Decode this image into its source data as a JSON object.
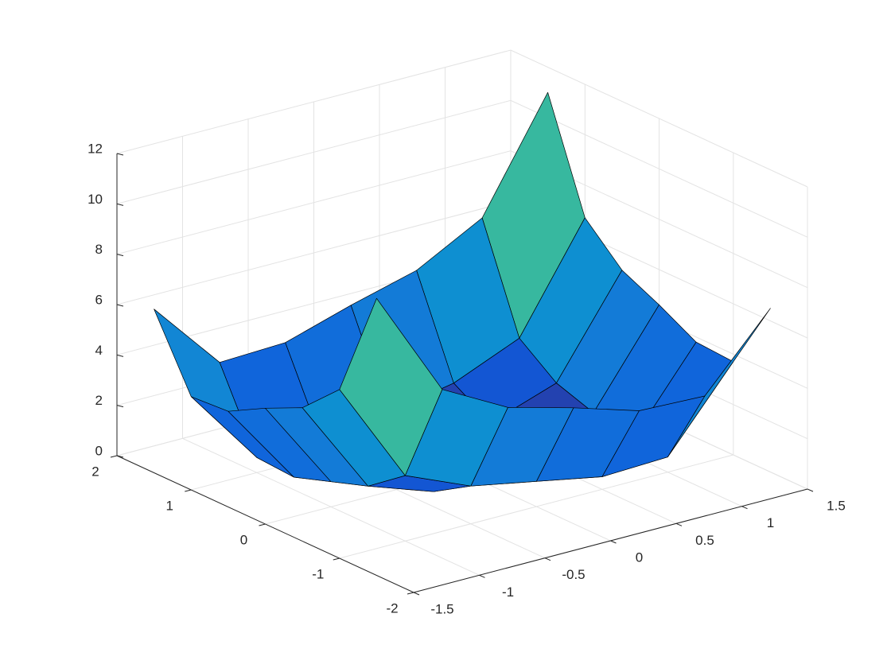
{
  "chart_data": {
    "type": "surface",
    "colormap": "parula",
    "grid": true,
    "x": [
      -1.5,
      -1,
      -0.5,
      0,
      0.5,
      1,
      1.5
    ],
    "y": [
      -1.5,
      -1,
      -0.5,
      0,
      0.5,
      1,
      1.5
    ],
    "z": [
      [
        11.0,
        6.7,
        5.3,
        4.6,
        3.8,
        3.7,
        6.5
      ],
      [
        6.7,
        2.6,
        1.5,
        1.0,
        0.5,
        0.6,
        3.7
      ],
      [
        5.3,
        1.5,
        0.6,
        0.4,
        0.1,
        0.5,
        3.8
      ],
      [
        4.6,
        1.0,
        0.4,
        0.4,
        0.4,
        1.0,
        4.6
      ],
      [
        3.8,
        0.5,
        0.1,
        0.4,
        0.6,
        1.5,
        5.3
      ],
      [
        3.7,
        0.6,
        0.5,
        1.0,
        1.5,
        2.6,
        6.7
      ],
      [
        6.5,
        3.7,
        3.8,
        4.6,
        5.3,
        6.7,
        11.0
      ]
    ],
    "xlim": [
      -1.5,
      1.5
    ],
    "xticks": [
      -1.5,
      -1,
      -0.5,
      0,
      0.5,
      1,
      1.5
    ],
    "ylim": [
      -2,
      2
    ],
    "yticks": [
      -2,
      -1,
      0,
      1,
      2
    ],
    "zlim": [
      0,
      12
    ],
    "zticks": [
      0,
      2,
      4,
      6,
      8,
      10,
      12
    ]
  }
}
